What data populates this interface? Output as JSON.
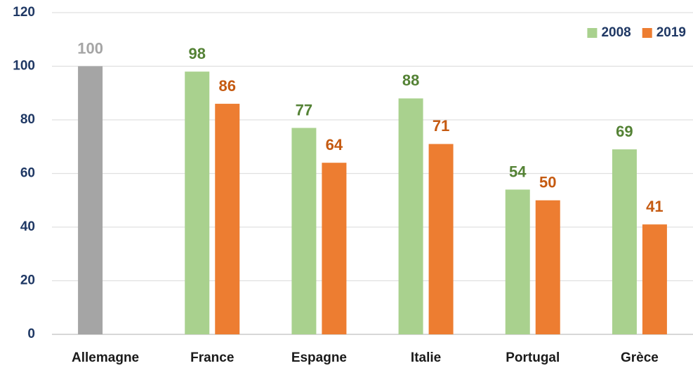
{
  "chart_data": {
    "type": "bar",
    "categories": [
      "Allemagne",
      "France",
      "Espagne",
      "Italie",
      "Portugal",
      "Grèce"
    ],
    "series": [
      {
        "name": "2008",
        "color": "#a9d18e",
        "label_color": "#548235",
        "colors": [
          "#a5a5a5",
          "#a9d18e",
          "#a9d18e",
          "#a9d18e",
          "#a9d18e",
          "#a9d18e"
        ],
        "label_colors": [
          "#a5a5a5",
          "#548235",
          "#548235",
          "#548235",
          "#548235",
          "#548235"
        ],
        "values": [
          100,
          98,
          77,
          88,
          54,
          69
        ]
      },
      {
        "name": "2019",
        "color": "#ed7d31",
        "label_color": "#c55a11",
        "values": [
          null,
          86,
          64,
          71,
          50,
          41
        ]
      }
    ],
    "ylim": [
      0,
      120
    ],
    "yticks": [
      0,
      20,
      40,
      60,
      80,
      100,
      120
    ],
    "grid": true,
    "legend": "upper right"
  }
}
